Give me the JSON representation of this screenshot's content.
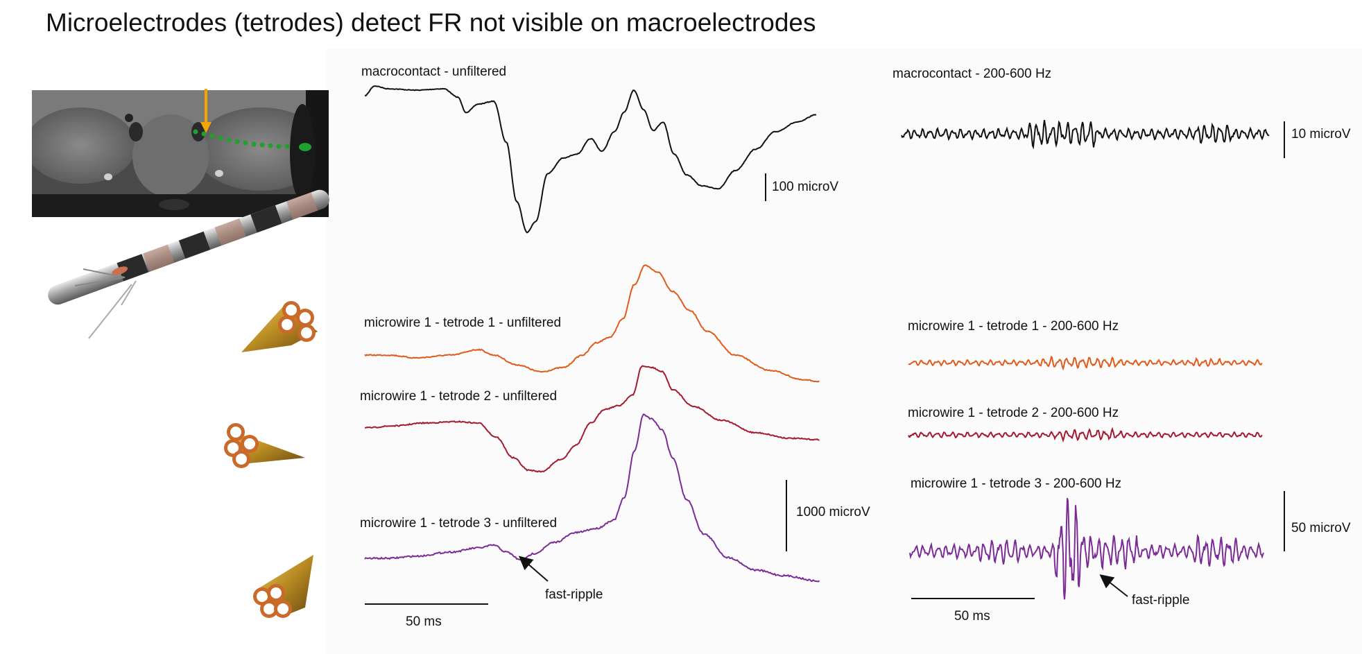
{
  "title": "Microelectrodes (tetrodes) detect FR not visible on macroelectrodes",
  "colors": {
    "macro": "#111111",
    "tetrode1": "#e05a1a",
    "tetrode2": "#a3192e",
    "tetrode3": "#7b2b96",
    "arrow": "#f5a500",
    "trajectory": "#1fa02f",
    "gold": "#c9962b"
  },
  "traces": [
    {
      "id": "macro-unfiltered",
      "label": "macrocontact - unfiltered"
    },
    {
      "id": "macro-filtered",
      "label": "macrocontact - 200-600 Hz"
    },
    {
      "id": "t1-unfiltered",
      "label": "microwire 1 - tetrode 1 - unfiltered"
    },
    {
      "id": "t1-filtered",
      "label": "microwire 1 - tetrode 1 - 200-600 Hz"
    },
    {
      "id": "t2-unfiltered",
      "label": "microwire 1 - tetrode 2 - unfiltered"
    },
    {
      "id": "t2-filtered",
      "label": "microwire 1 - tetrode 2 - 200-600 Hz"
    },
    {
      "id": "t3-unfiltered",
      "label": "microwire 1 - tetrode 3 - unfiltered"
    },
    {
      "id": "t3-filtered",
      "label": "microwire 1 - tetrode 3 - 200-600 Hz"
    }
  ],
  "scalebars": {
    "macro_unfiltered": "100 microV",
    "macro_filtered": "10 microV",
    "micro_unfiltered": "1000 microV",
    "micro_filtered": "50 microV",
    "time_left": "50 ms",
    "time_right": "50 ms"
  },
  "annotations": {
    "fast_ripple_left": "fast-ripple",
    "fast_ripple_right": "fast-ripple"
  }
}
